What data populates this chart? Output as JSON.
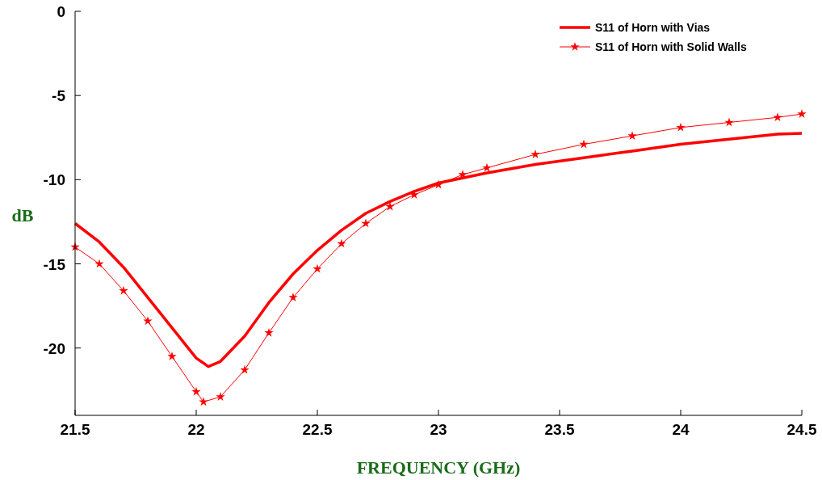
{
  "chart_data": {
    "type": "line",
    "xlabel": "FREQUENCY (GHz)",
    "ylabel": "dB",
    "xlim": [
      21.5,
      24.5
    ],
    "xticks": [
      21.5,
      22,
      22.5,
      23,
      23.5,
      24,
      24.5
    ],
    "ylim": [
      -24,
      0
    ],
    "yticks": [
      -20,
      -15,
      -10,
      -5,
      0
    ],
    "grid": false,
    "legend": "top right",
    "series": [
      {
        "name": "S11 of Horn with Vias",
        "color": "#ff0000",
        "marker": "none",
        "x": [
          21.5,
          21.6,
          21.7,
          21.8,
          21.9,
          22.0,
          22.05,
          22.1,
          22.2,
          22.3,
          22.4,
          22.5,
          22.6,
          22.7,
          22.8,
          22.9,
          23.0,
          23.2,
          23.4,
          23.6,
          23.8,
          24.0,
          24.2,
          24.4,
          24.5
        ],
        "values": [
          -12.6,
          -13.7,
          -15.2,
          -17.0,
          -18.8,
          -20.6,
          -21.1,
          -20.8,
          -19.3,
          -17.3,
          -15.6,
          -14.2,
          -13.0,
          -12.0,
          -11.3,
          -10.7,
          -10.2,
          -9.6,
          -9.1,
          -8.7,
          -8.3,
          -7.9,
          -7.6,
          -7.3,
          -7.25
        ]
      },
      {
        "name": "S11 of Horn with Solid Walls",
        "color": "#ff0000",
        "marker": "star",
        "x": [
          21.5,
          21.6,
          21.7,
          21.8,
          21.9,
          22.0,
          22.03,
          22.1,
          22.2,
          22.3,
          22.4,
          22.5,
          22.6,
          22.7,
          22.8,
          22.9,
          23.0,
          23.1,
          23.2,
          23.4,
          23.6,
          23.8,
          24.0,
          24.2,
          24.4,
          24.5
        ],
        "values": [
          -14.0,
          -15.0,
          -16.6,
          -18.4,
          -20.5,
          -22.6,
          -23.2,
          -22.9,
          -21.3,
          -19.1,
          -17.0,
          -15.3,
          -13.8,
          -12.6,
          -11.6,
          -10.9,
          -10.3,
          -9.7,
          -9.3,
          -8.5,
          -7.9,
          -7.4,
          -6.9,
          -6.6,
          -6.3,
          -6.1
        ]
      }
    ]
  }
}
